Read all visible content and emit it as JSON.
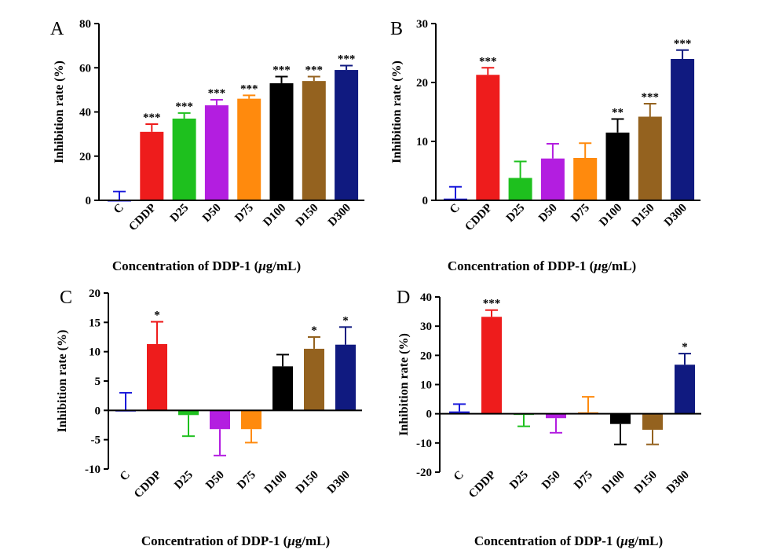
{
  "colors": {
    "C": "#1a1adb",
    "CDDP": "#ee1c1c",
    "D25": "#1ec01e",
    "D50": "#b31ee0",
    "D75": "#ff8a0d",
    "D100": "#000000",
    "D150": "#94621f",
    "D300": "#101a80"
  },
  "chart_data": [
    {
      "type": "bar",
      "panel_label": "A",
      "categories": [
        "C",
        "CDDP",
        "D25",
        "D50",
        "D75",
        "D100",
        "D150",
        "D300"
      ],
      "values": [
        0,
        31,
        37,
        43,
        46,
        53,
        54,
        59
      ],
      "errors": [
        4,
        3.5,
        2.5,
        2.5,
        1.5,
        3,
        2,
        2
      ],
      "significance": [
        "",
        "***",
        "***",
        "***",
        "***",
        "***",
        "***",
        "***"
      ],
      "ylim": [
        0,
        80
      ],
      "yticks": [
        0,
        20,
        40,
        60,
        80
      ],
      "ylabel": "Inhibition rate (%)",
      "xlabel_prefix": "Concentration of DDP-1 (",
      "xlabel_mu": "μ",
      "xlabel_suffix": "g/mL)"
    },
    {
      "type": "bar",
      "panel_label": "B",
      "categories": [
        "C",
        "CDDP",
        "D25",
        "D50",
        "D75",
        "D100",
        "D150",
        "D300"
      ],
      "values": [
        0.3,
        21.3,
        3.8,
        7.1,
        7.2,
        11.5,
        14.2,
        24.0
      ],
      "errors": [
        2.0,
        1.2,
        2.8,
        2.5,
        2.5,
        2.3,
        2.2,
        1.5
      ],
      "significance": [
        "",
        "***",
        "",
        "",
        "",
        "**",
        "***",
        "***"
      ],
      "ylim": [
        0,
        30
      ],
      "yticks": [
        0,
        10,
        20,
        30
      ],
      "ylabel": "Inhibition rate (%)",
      "xlabel_prefix": "Concentration of DDP-1 (",
      "xlabel_mu": "μ",
      "xlabel_suffix": "g/mL)"
    },
    {
      "type": "bar",
      "panel_label": "C",
      "categories": [
        "C",
        "CDDP",
        "D25",
        "D50",
        "D75",
        "D100",
        "D150",
        "D300"
      ],
      "values": [
        0,
        11.3,
        -0.8,
        -3.2,
        -3.2,
        7.5,
        10.5,
        11.2
      ],
      "errors": [
        3.0,
        3.8,
        3.6,
        4.5,
        2.3,
        2.0,
        2.0,
        3.0
      ],
      "significance": [
        "",
        "*",
        "",
        "",
        "",
        "",
        "*",
        "*"
      ],
      "ylim": [
        -10,
        20
      ],
      "yticks": [
        -10,
        -5,
        0,
        5,
        10,
        15,
        20
      ],
      "ylabel": "Inhibition rate (%)",
      "xlabel_prefix": "Concentration of DDP-1 (",
      "xlabel_mu": "μ",
      "xlabel_suffix": "g/mL)"
    },
    {
      "type": "bar",
      "panel_label": "D",
      "categories": [
        "C",
        "CDDP",
        "D25",
        "D50",
        "D75",
        "D100",
        "D150",
        "D300"
      ],
      "values": [
        0.8,
        33.2,
        -0.3,
        -1.5,
        0.5,
        -3.5,
        -5.5,
        16.8
      ],
      "errors": [
        2.5,
        2.3,
        4.0,
        5.0,
        5.3,
        7.0,
        5.0,
        3.8
      ],
      "significance": [
        "",
        "***",
        "",
        "",
        "",
        "",
        "",
        "*"
      ],
      "ylim": [
        -20,
        40
      ],
      "yticks": [
        -20,
        -10,
        0,
        10,
        20,
        30,
        40
      ],
      "ylabel": "Inhibition rate (%)",
      "xlabel_prefix": "Concentration of DDP-1 (",
      "xlabel_mu": "μ",
      "xlabel_suffix": "g/mL)"
    }
  ]
}
